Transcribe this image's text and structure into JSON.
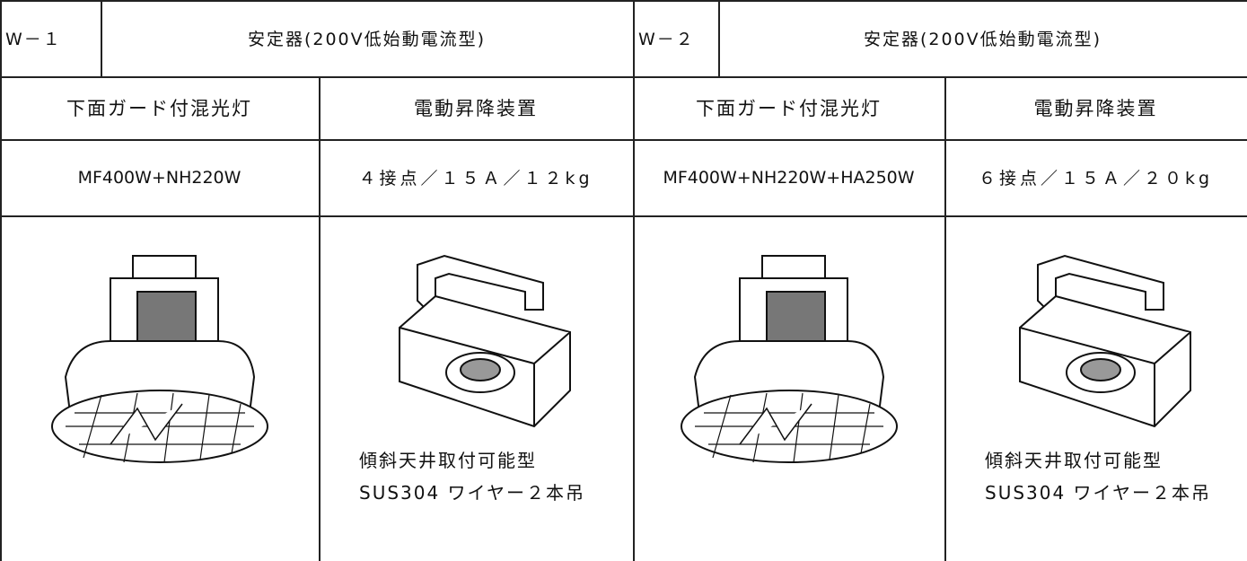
{
  "panels": [
    {
      "code": "W－１",
      "ballast": "安定器(200V低始動電流型)",
      "items": [
        {
          "name": "下面ガード付混光灯",
          "spec": "MF400W+NH220W"
        },
        {
          "name": "電動昇降装置",
          "spec": "４接点／１５Ａ／１２kg",
          "notes": [
            "傾斜天井取付可能型",
            "SUS304 ワイヤー２本吊"
          ]
        }
      ]
    },
    {
      "code": "W－２",
      "ballast": "安定器(200V低始動電流型)",
      "items": [
        {
          "name": "下面ガード付混光灯",
          "spec": "MF400W+NH220W+HA250W"
        },
        {
          "name": "電動昇降装置",
          "spec": "６接点／１５Ａ／２０kg",
          "notes": [
            "傾斜天井取付可能型",
            "SUS304 ワイヤー２本吊"
          ]
        }
      ]
    }
  ]
}
